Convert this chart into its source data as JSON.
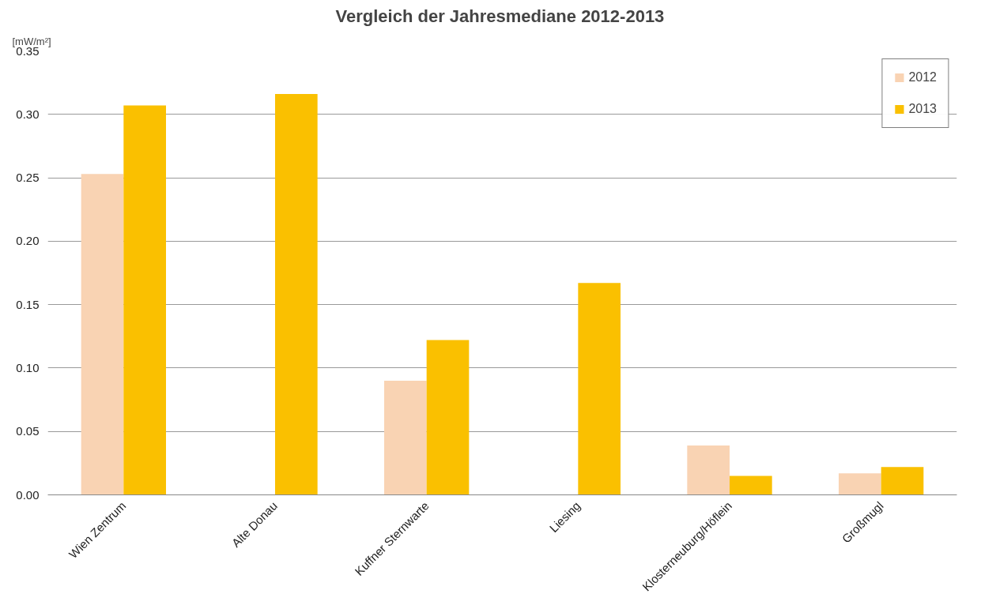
{
  "chart_data": {
    "type": "bar",
    "title": "Vergleich der Jahresmediane  2012-2013",
    "ylabel": "[mW/m²]",
    "categories": [
      "Wien Zentrum",
      "Alte Donau",
      "Kuffner Sternwarte",
      "Liesing",
      "Klosterneuburg/Höflein",
      "Großmugl"
    ],
    "series": [
      {
        "name": "2012",
        "color": "#f9d3b3",
        "values": [
          0.253,
          null,
          0.09,
          null,
          0.039,
          0.017
        ]
      },
      {
        "name": "2013",
        "color": "#fac000",
        "values": [
          0.307,
          0.316,
          0.122,
          0.167,
          0.015,
          0.022
        ]
      }
    ],
    "ylim": [
      0,
      0.35
    ],
    "yticks": [
      {
        "value": 0,
        "label": "0.00"
      },
      {
        "value": 0.05,
        "label": "0.05"
      },
      {
        "value": 0.1,
        "label": "0.10"
      },
      {
        "value": 0.15,
        "label": "0.15"
      },
      {
        "value": 0.2,
        "label": "0.20"
      },
      {
        "value": 0.25,
        "label": "0.25"
      },
      {
        "value": 0.3,
        "label": "0.30"
      },
      {
        "value": 0.35,
        "label": "0.35"
      }
    ],
    "grid": "y",
    "legend": "top right"
  }
}
